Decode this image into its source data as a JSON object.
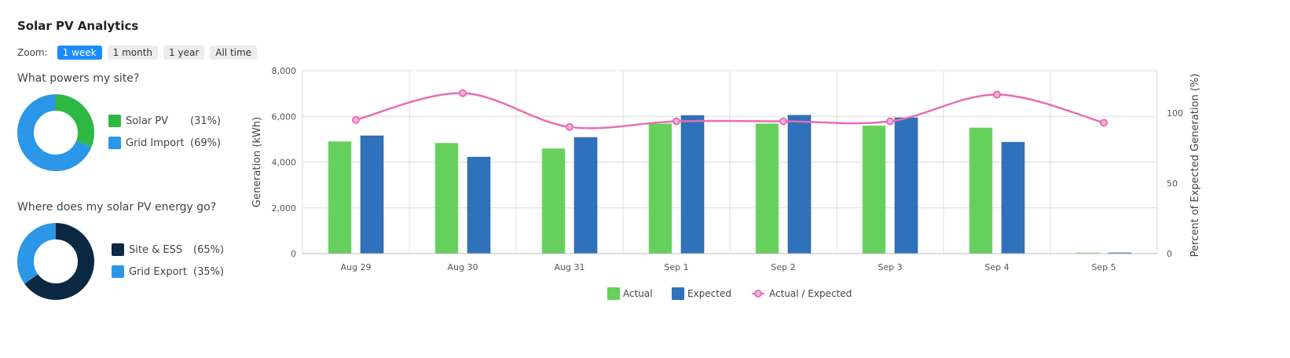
{
  "app_title": "Solar PV Analytics",
  "zoom": {
    "label": "Zoom:",
    "options": [
      "1 week",
      "1 month",
      "1 year",
      "All time"
    ],
    "active": "1 week"
  },
  "powers": {
    "title": "What powers my site?",
    "items": [
      {
        "name": "Solar PV",
        "pct": "(31%)",
        "value": 31,
        "color": "#2db843"
      },
      {
        "name": "Grid Import",
        "pct": "(69%)",
        "value": 69,
        "color": "#2c96e8"
      }
    ]
  },
  "energy_go": {
    "title": "Where does my solar PV energy go?",
    "items": [
      {
        "name": "Site & ESS",
        "pct": "(65%)",
        "value": 65,
        "color": "#0b2942"
      },
      {
        "name": "Grid Export",
        "pct": "(35%)",
        "value": 35,
        "color": "#2c96e8"
      }
    ]
  },
  "chart_data": {
    "type": "bar",
    "categories": [
      "Aug 29",
      "Aug 30",
      "Aug 31",
      "Sep 1",
      "Sep 2",
      "Sep 3",
      "Sep 4",
      "Sep 5"
    ],
    "series": [
      {
        "name": "Actual",
        "type": "bar",
        "axis": "left",
        "color": "#66d05c",
        "values": [
          4900,
          4830,
          4590,
          5680,
          5680,
          5590,
          5500,
          0
        ]
      },
      {
        "name": "Expected",
        "type": "bar",
        "axis": "left",
        "color": "#2f72bb",
        "values": [
          5150,
          4220,
          5080,
          6040,
          6050,
          5940,
          4870,
          0
        ]
      },
      {
        "name": "Actual / Expected",
        "type": "line",
        "axis": "right",
        "color": "#e86db3",
        "values": [
          95,
          114,
          90,
          94,
          94,
          94,
          113,
          93
        ]
      }
    ],
    "ylabel": "Generation (kWh)",
    "ylabel_right": "Percent of Expected Generation (%)",
    "ylim": [
      0,
      8000
    ],
    "yticks": [
      "0",
      "2,000",
      "4,000",
      "6,000",
      "8,000"
    ],
    "ylim_right": [
      0,
      130
    ],
    "yticks_right": [
      "0",
      "50",
      "100"
    ],
    "grid": true,
    "legend_position": "bottom"
  }
}
